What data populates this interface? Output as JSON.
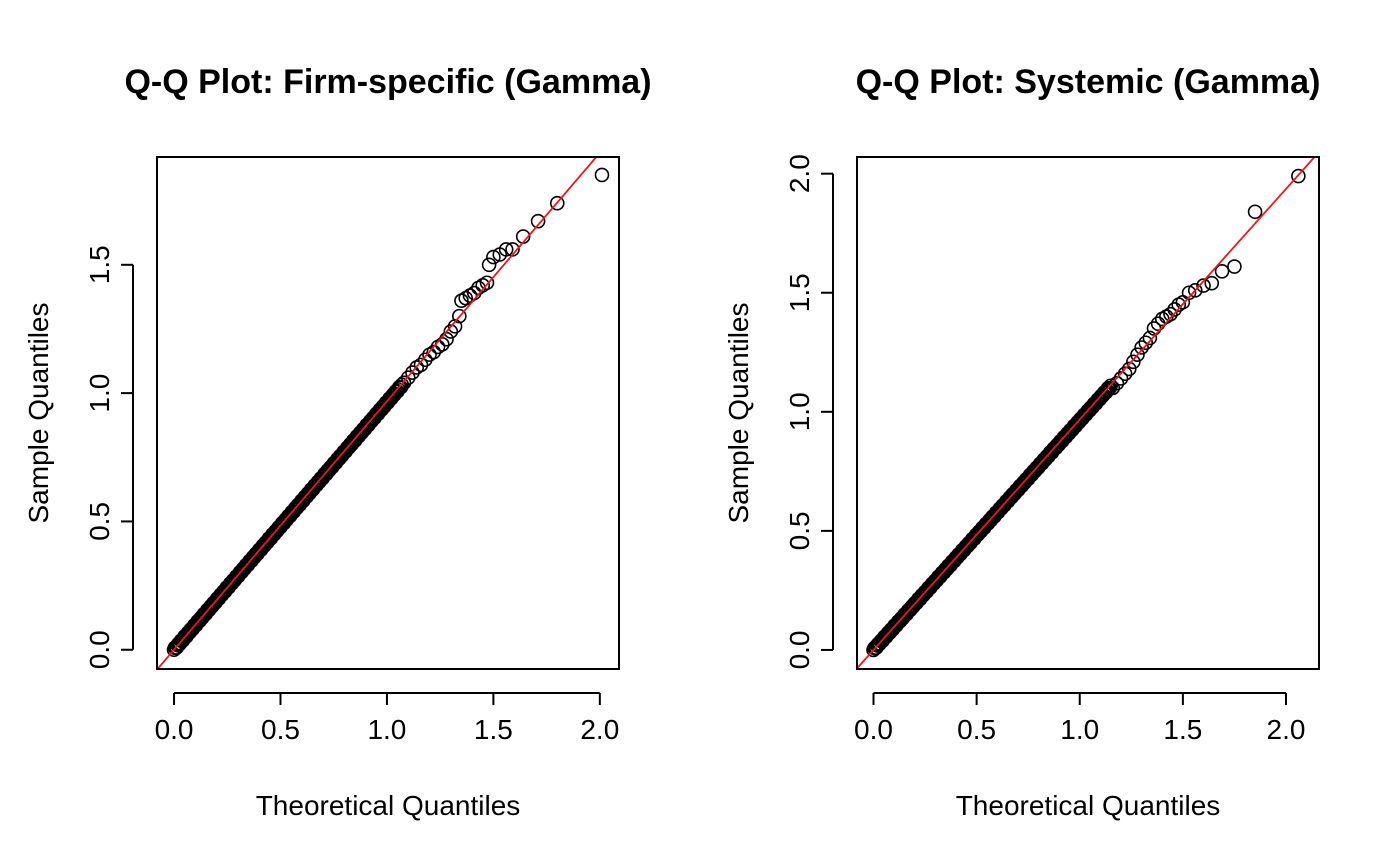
{
  "chart_data": [
    {
      "type": "scatter",
      "title": "Q-Q Plot: Firm-specific (Gamma)",
      "xlabel": "Theoretical Quantiles",
      "ylabel": "Sample Quantiles",
      "xlim": [
        -0.08,
        2.09
      ],
      "ylim": [
        -0.075,
        1.92
      ],
      "xticks": [
        0.0,
        0.5,
        1.0,
        1.5,
        2.0
      ],
      "xtick_labels": [
        "0.0",
        "0.5",
        "1.0",
        "1.5",
        "2.0"
      ],
      "yticks": [
        0.0,
        0.5,
        1.0,
        1.5
      ],
      "ytick_labels": [
        "0.0",
        "0.5",
        "1.0",
        "1.5"
      ],
      "reference_line": {
        "slope": 0.968,
        "intercept": 0.0,
        "color": "#e41a1c"
      },
      "point_color": "#000000",
      "points": [
        [
          1.08,
          1.04
        ],
        [
          1.1,
          1.06
        ],
        [
          1.12,
          1.08
        ],
        [
          1.14,
          1.1
        ],
        [
          1.16,
          1.11
        ],
        [
          1.18,
          1.13
        ],
        [
          1.2,
          1.15
        ],
        [
          1.22,
          1.16
        ],
        [
          1.24,
          1.18
        ],
        [
          1.26,
          1.19
        ],
        [
          1.28,
          1.21
        ],
        [
          1.3,
          1.24
        ],
        [
          1.32,
          1.26
        ],
        [
          1.34,
          1.3
        ],
        [
          1.35,
          1.36
        ],
        [
          1.37,
          1.37
        ],
        [
          1.39,
          1.38
        ],
        [
          1.41,
          1.39
        ],
        [
          1.43,
          1.41
        ],
        [
          1.45,
          1.42
        ],
        [
          1.47,
          1.43
        ],
        [
          1.48,
          1.5
        ],
        [
          1.5,
          1.53
        ],
        [
          1.53,
          1.54
        ],
        [
          1.56,
          1.56
        ],
        [
          1.59,
          1.56
        ],
        [
          1.64,
          1.61
        ],
        [
          1.71,
          1.67
        ],
        [
          1.8,
          1.74
        ],
        [
          2.01,
          1.85
        ]
      ],
      "dense_range": [
        0.0,
        1.07
      ]
    },
    {
      "type": "scatter",
      "title": "Q-Q Plot: Systemic (Gamma)",
      "xlabel": "Theoretical Quantiles",
      "ylabel": "Sample Quantiles",
      "xlim": [
        -0.08,
        2.16
      ],
      "ylim": [
        -0.08,
        2.07
      ],
      "xticks": [
        0.0,
        0.5,
        1.0,
        1.5,
        2.0
      ],
      "xtick_labels": [
        "0.0",
        "0.5",
        "1.0",
        "1.5",
        "2.0"
      ],
      "yticks": [
        0.0,
        0.5,
        1.0,
        1.5,
        2.0
      ],
      "ytick_labels": [
        "0.0",
        "0.5",
        "1.0",
        "1.5",
        "2.0"
      ],
      "reference_line": {
        "slope": 0.968,
        "intercept": 0.0,
        "color": "#e41a1c"
      },
      "point_color": "#000000",
      "points": [
        [
          1.16,
          1.1
        ],
        [
          1.18,
          1.12
        ],
        [
          1.2,
          1.14
        ],
        [
          1.22,
          1.16
        ],
        [
          1.24,
          1.18
        ],
        [
          1.26,
          1.21
        ],
        [
          1.28,
          1.24
        ],
        [
          1.3,
          1.27
        ],
        [
          1.32,
          1.29
        ],
        [
          1.34,
          1.31
        ],
        [
          1.36,
          1.35
        ],
        [
          1.38,
          1.37
        ],
        [
          1.4,
          1.39
        ],
        [
          1.42,
          1.4
        ],
        [
          1.44,
          1.41
        ],
        [
          1.46,
          1.43
        ],
        [
          1.48,
          1.45
        ],
        [
          1.5,
          1.46
        ],
        [
          1.53,
          1.5
        ],
        [
          1.56,
          1.51
        ],
        [
          1.6,
          1.53
        ],
        [
          1.64,
          1.54
        ],
        [
          1.69,
          1.59
        ],
        [
          1.75,
          1.61
        ],
        [
          1.85,
          1.84
        ],
        [
          2.06,
          1.99
        ]
      ],
      "dense_range": [
        0.0,
        1.15
      ]
    }
  ]
}
